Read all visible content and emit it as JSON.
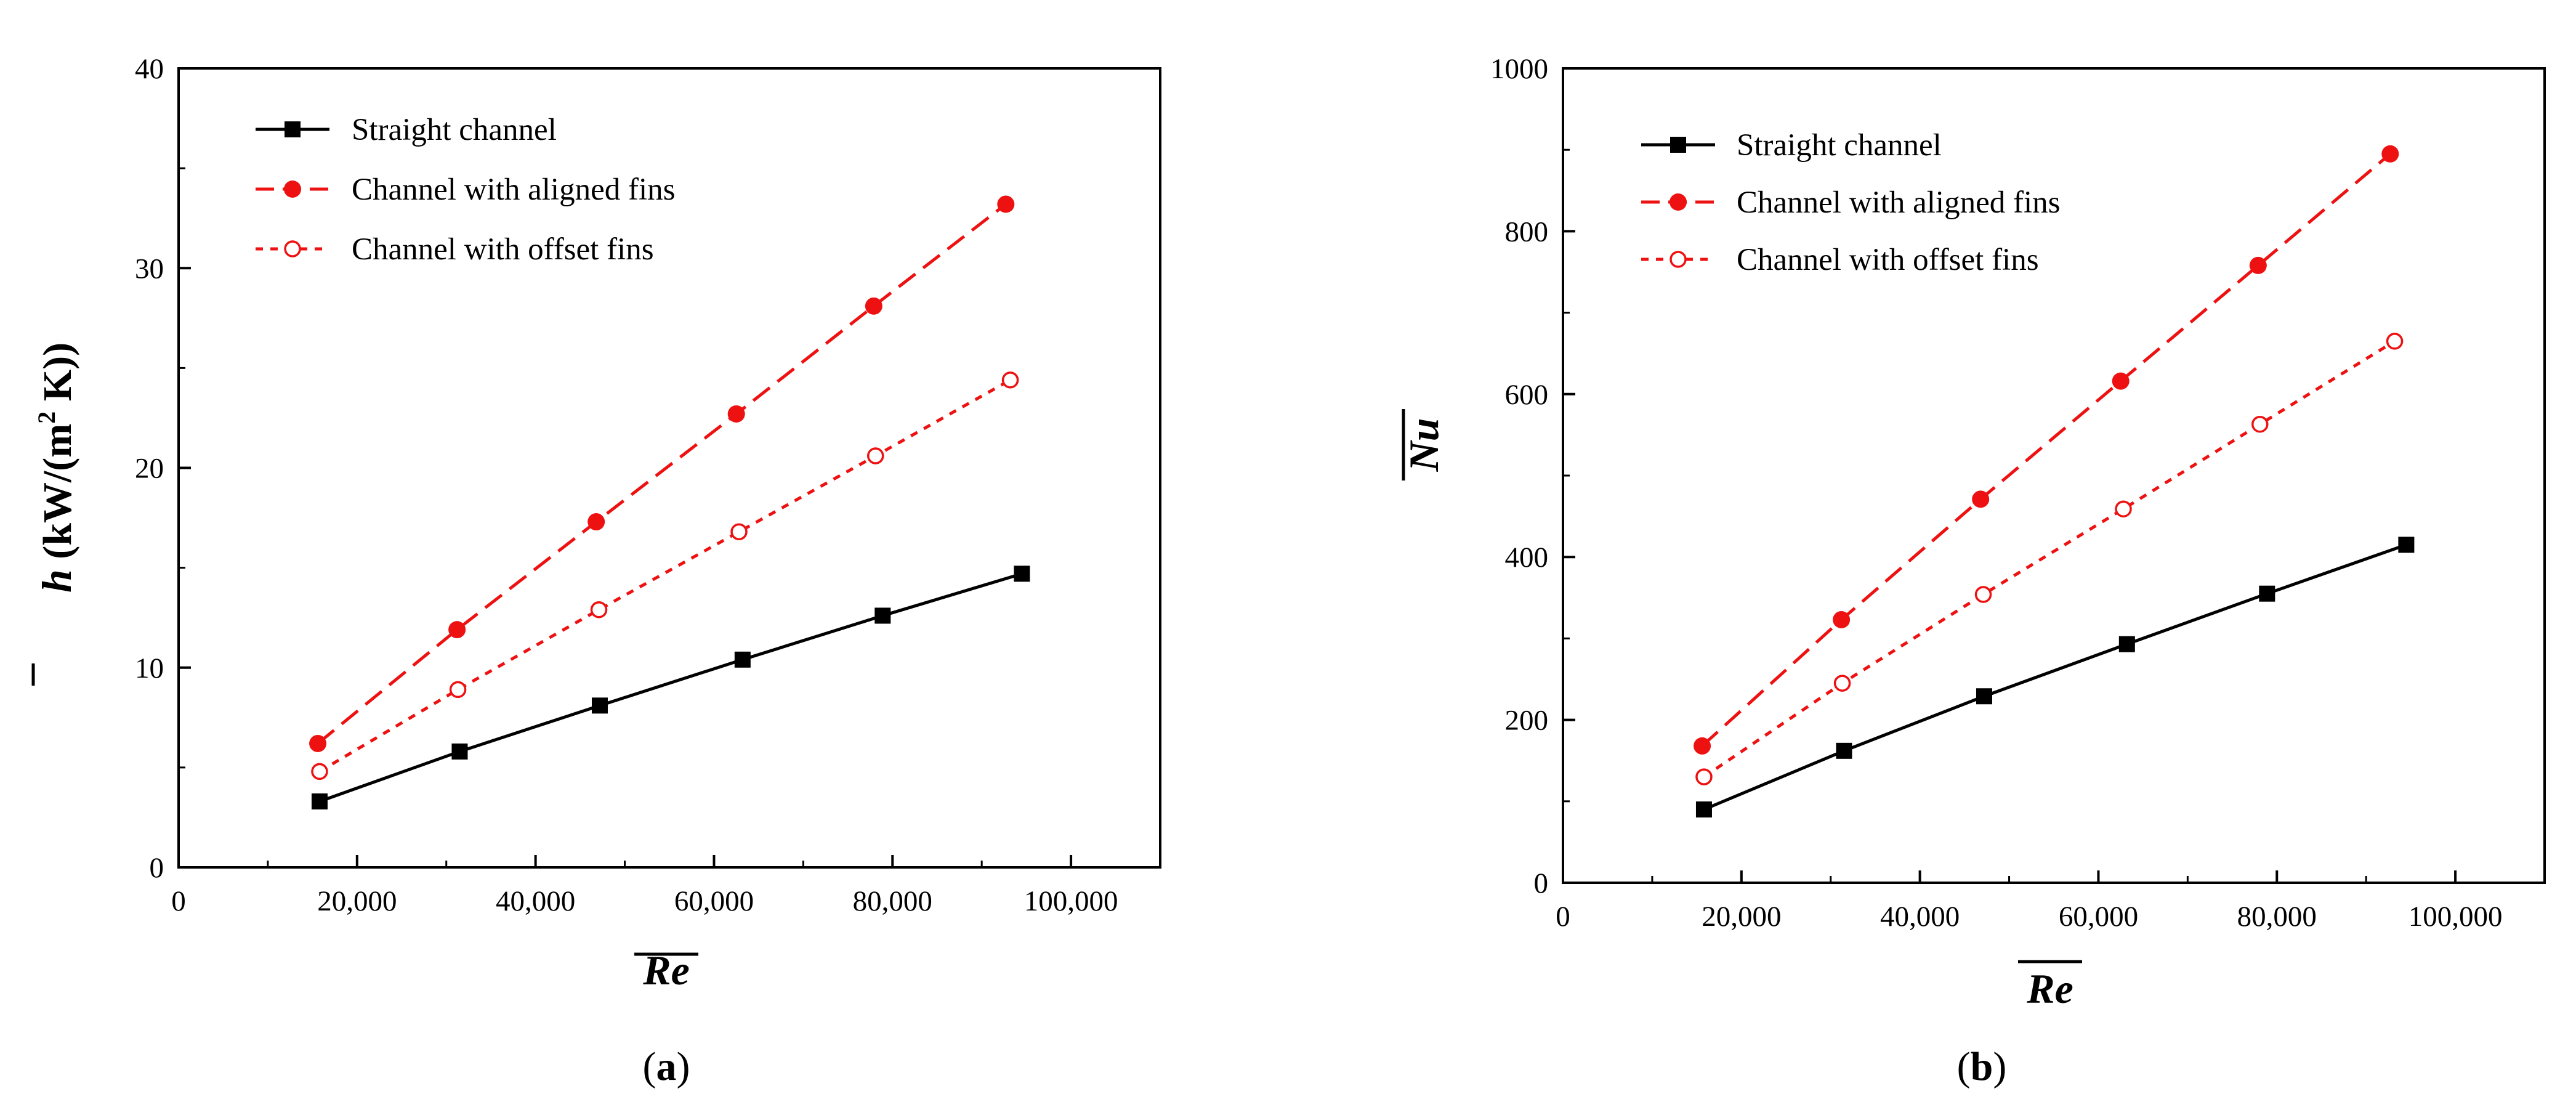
{
  "colors": {
    "straight": "#000000",
    "aligned": "#ee1111",
    "offset": "#ee1111"
  },
  "chart_data": [
    {
      "type": "line",
      "panel_label": "a",
      "xlabel": "Re",
      "ylabel_symbol": "h",
      "ylabel_units_pre": " (kW/(m",
      "ylabel_sup": "2",
      "ylabel_units_post": " K))",
      "xlim": [
        0,
        110000
      ],
      "ylim": [
        0,
        40
      ],
      "xticks": [
        0,
        20000,
        40000,
        60000,
        80000,
        100000
      ],
      "xtick_labels": [
        "0",
        "20,000",
        "40,000",
        "60,000",
        "80,000",
        "100,000"
      ],
      "yticks": [
        0,
        10,
        20,
        30,
        40
      ],
      "ytick_labels": [
        "0",
        "10",
        "20",
        "30",
        "40"
      ],
      "legend_position": "top-left",
      "series": [
        {
          "key": "straight",
          "name": "Straight channel",
          "marker": "square-filled",
          "line": "solid",
          "x": [
            15800,
            31500,
            47200,
            63200,
            78900,
            94500
          ],
          "y": [
            3.3,
            5.8,
            8.1,
            10.4,
            12.6,
            14.7
          ]
        },
        {
          "key": "aligned",
          "name": "Channel with aligned fins",
          "marker": "circle-filled",
          "line": "dashed",
          "x": [
            15600,
            31200,
            46800,
            62500,
            77900,
            92700
          ],
          "y": [
            6.2,
            11.9,
            17.3,
            22.7,
            28.1,
            33.2
          ]
        },
        {
          "key": "offset",
          "name": "Channel with offset fins",
          "marker": "circle-open",
          "line": "dotted",
          "x": [
            15800,
            31300,
            47100,
            62800,
            78100,
            93200
          ],
          "y": [
            4.8,
            8.9,
            12.9,
            16.8,
            20.6,
            24.4
          ]
        }
      ]
    },
    {
      "type": "line",
      "panel_label": "b",
      "xlabel": "Re",
      "ylabel_symbol": "Nu",
      "xlim": [
        0,
        110000
      ],
      "ylim": [
        0,
        1000
      ],
      "xticks": [
        0,
        20000,
        40000,
        60000,
        80000,
        100000
      ],
      "xtick_labels": [
        "0",
        "20,000",
        "40,000",
        "60,000",
        "80,000",
        "100,000"
      ],
      "yticks": [
        0,
        200,
        400,
        600,
        800,
        1000
      ],
      "ytick_labels": [
        "0",
        "200",
        "400",
        "600",
        "800",
        "1000"
      ],
      "legend_position": "top-left",
      "series": [
        {
          "key": "straight",
          "name": "Straight channel",
          "marker": "square-filled",
          "line": "solid",
          "x": [
            15800,
            31500,
            47200,
            63200,
            78900,
            94500
          ],
          "y": [
            90,
            162,
            229,
            293,
            355,
            415
          ]
        },
        {
          "key": "aligned",
          "name": "Channel with aligned fins",
          "marker": "circle-filled",
          "line": "dashed",
          "x": [
            15600,
            31200,
            46800,
            62500,
            77900,
            92700
          ],
          "y": [
            168,
            323,
            471,
            616,
            758,
            895
          ]
        },
        {
          "key": "offset",
          "name": "Channel with offset fins",
          "marker": "circle-open",
          "line": "dotted",
          "x": [
            15800,
            31300,
            47100,
            62800,
            78100,
            93200
          ],
          "y": [
            130,
            245,
            354,
            459,
            563,
            665
          ]
        }
      ]
    }
  ]
}
